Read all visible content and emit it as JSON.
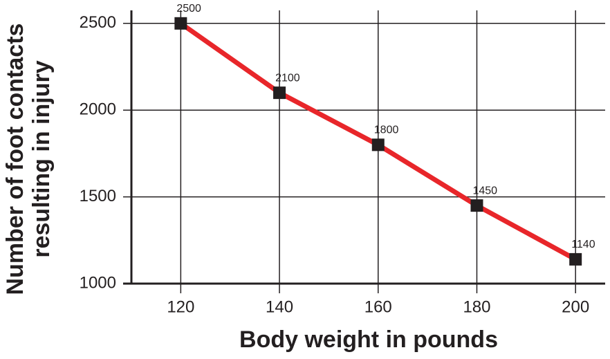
{
  "chart_data": {
    "type": "line",
    "xlabel": "Body weight in pounds",
    "ylabel": [
      "Number of foot contacts",
      "resulting in injury"
    ],
    "x": [
      120,
      140,
      160,
      180,
      200
    ],
    "series": [
      {
        "color": "#e8262a",
        "marker_color": "#231f20",
        "values": [
          2500,
          2100,
          1800,
          1450,
          1140
        ]
      }
    ],
    "xlim": [
      110,
      206
    ],
    "xticks": [
      120,
      140,
      160,
      180,
      200
    ],
    "ylim": [
      1000,
      2575
    ],
    "yticks": [
      1000,
      1500,
      2000,
      2500
    ],
    "grid": true
  }
}
